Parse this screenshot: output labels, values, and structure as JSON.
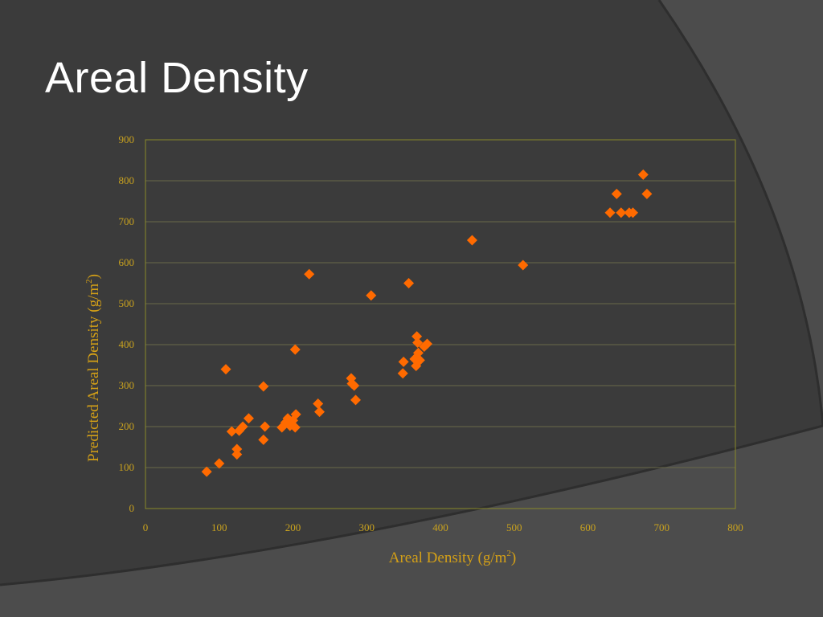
{
  "slide": {
    "title": "Areal Density"
  },
  "colors": {
    "background": "#3b3b3b",
    "marker": "#ff6a00",
    "axis_text": "#c9a21e",
    "axis_line": "#8a8a2a",
    "gridline": "#6a6a4a"
  },
  "chart_data": {
    "type": "scatter",
    "marker": "diamond",
    "xlabel": "Areal Density (g/m2)",
    "ylabel": "Predicted Areal Density (g/m2)",
    "xlabel_main": "Areal Density (g/m",
    "ylabel_main": "Predicted Areal Density (g/m",
    "unit_superscript": "2",
    "label_close": ")",
    "xlim": [
      0,
      800
    ],
    "ylim": [
      0,
      900
    ],
    "xticks": [
      0,
      100,
      200,
      300,
      400,
      500,
      600,
      700,
      800
    ],
    "yticks": [
      0,
      100,
      200,
      300,
      400,
      500,
      600,
      700,
      800,
      900
    ],
    "grid": {
      "horizontal": true,
      "vertical": false
    },
    "legend": "none",
    "series": [
      {
        "points": [
          [
            83,
            90
          ],
          [
            100,
            110
          ],
          [
            109,
            340
          ],
          [
            117,
            188
          ],
          [
            124,
            132
          ],
          [
            124,
            145
          ],
          [
            127,
            190
          ],
          [
            132,
            200
          ],
          [
            140,
            220
          ],
          [
            160,
            168
          ],
          [
            160,
            298
          ],
          [
            162,
            200
          ],
          [
            185,
            198
          ],
          [
            190,
            210
          ],
          [
            193,
            220
          ],
          [
            196,
            202
          ],
          [
            200,
            215
          ],
          [
            203,
            198
          ],
          [
            204,
            230
          ],
          [
            203,
            388
          ],
          [
            222,
            572
          ],
          [
            234,
            256
          ],
          [
            236,
            236
          ],
          [
            279,
            318
          ],
          [
            280,
            305
          ],
          [
            283,
            300
          ],
          [
            285,
            265
          ],
          [
            306,
            520
          ],
          [
            349,
            330
          ],
          [
            350,
            358
          ],
          [
            357,
            550
          ],
          [
            365,
            365
          ],
          [
            367,
            348
          ],
          [
            368,
            420
          ],
          [
            369,
            405
          ],
          [
            370,
            380
          ],
          [
            372,
            362
          ],
          [
            378,
            395
          ],
          [
            382,
            402
          ],
          [
            443,
            655
          ],
          [
            512,
            594
          ],
          [
            630,
            722
          ],
          [
            639,
            768
          ],
          [
            645,
            722
          ],
          [
            656,
            722
          ],
          [
            661,
            722
          ],
          [
            675,
            815
          ],
          [
            680,
            768
          ]
        ]
      }
    ]
  }
}
